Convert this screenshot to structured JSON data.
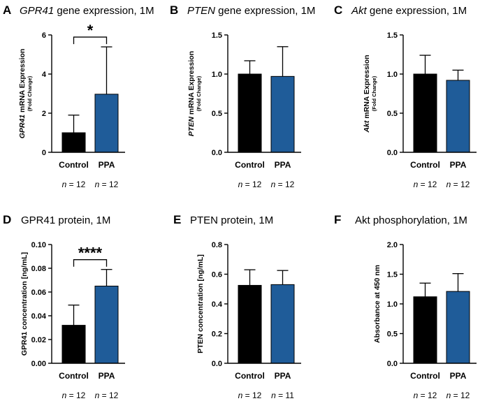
{
  "chart_data": [
    {
      "type": "bar",
      "letter": "A",
      "title_italic": "GPR41",
      "title_rest": " gene expression, 1M",
      "ylabel_italic": "GPR41",
      "ylabel_rest": " mRNA Expression",
      "ylabel_sub": "(Fold Change)",
      "categories": [
        "Control",
        "PPA"
      ],
      "values": [
        1.0,
        2.97
      ],
      "errors": [
        0.9,
        2.42
      ],
      "colors": [
        "#000000",
        "#1f5c99"
      ],
      "ylim": [
        0,
        6
      ],
      "yticks": [
        "0",
        "2",
        "4",
        "6"
      ],
      "n_labels": [
        "= 12",
        "= 12"
      ],
      "n_symbol": "n",
      "significance": "*"
    },
    {
      "type": "bar",
      "letter": "B",
      "title_italic": "PTEN",
      "title_rest": " gene expression, 1M",
      "ylabel_italic": "PTEN",
      "ylabel_rest": " mRNA Expression",
      "ylabel_sub": "(Fold Change)",
      "categories": [
        "Control",
        "PPA"
      ],
      "values": [
        1.0,
        0.97
      ],
      "errors": [
        0.17,
        0.38
      ],
      "colors": [
        "#000000",
        "#1f5c99"
      ],
      "ylim": [
        0,
        1.5
      ],
      "yticks": [
        "0.0",
        "0.5",
        "1.0",
        "1.5"
      ],
      "n_labels": [
        "= 12",
        "= 12"
      ],
      "n_symbol": "n",
      "significance": ""
    },
    {
      "type": "bar",
      "letter": "C",
      "title_italic": "Akt",
      "title_rest": " gene expression, 1M",
      "ylabel_italic": "Akt",
      "ylabel_rest": " mRNA Expression",
      "ylabel_sub": "(Fold Change)",
      "categories": [
        "Control",
        "PPA"
      ],
      "values": [
        1.0,
        0.92
      ],
      "errors": [
        0.24,
        0.13
      ],
      "colors": [
        "#000000",
        "#1f5c99"
      ],
      "ylim": [
        0,
        1.5
      ],
      "yticks": [
        "0.0",
        "0.5",
        "1.0",
        "1.5"
      ],
      "n_labels": [
        "= 12",
        "= 12"
      ],
      "n_symbol": "n",
      "significance": ""
    },
    {
      "type": "bar",
      "letter": "D",
      "title_italic": "",
      "title_rest": "GPR41 protein, 1M",
      "ylabel_italic": "",
      "ylabel_rest": "GPR41 concentration [ng/mL]",
      "ylabel_sub": "",
      "categories": [
        "Control",
        "PPA"
      ],
      "values": [
        0.032,
        0.065
      ],
      "errors": [
        0.017,
        0.014
      ],
      "colors": [
        "#000000",
        "#1f5c99"
      ],
      "ylim": [
        0,
        0.1
      ],
      "yticks": [
        "0.00",
        "0.02",
        "0.04",
        "0.06",
        "0.08",
        "0.10"
      ],
      "n_labels": [
        "= 12",
        "= 12"
      ],
      "n_symbol": "n",
      "significance": "****"
    },
    {
      "type": "bar",
      "letter": "E",
      "title_italic": "",
      "title_rest": "PTEN protein, 1M",
      "ylabel_italic": "",
      "ylabel_rest": "PTEN concentration [ng/mL]",
      "ylabel_sub": "",
      "categories": [
        "Control",
        "PPA"
      ],
      "values": [
        0.525,
        0.53
      ],
      "errors": [
        0.105,
        0.095
      ],
      "colors": [
        "#000000",
        "#1f5c99"
      ],
      "ylim": [
        0,
        0.8
      ],
      "yticks": [
        "0.0",
        "0.2",
        "0.4",
        "0.6",
        "0.8"
      ],
      "n_labels": [
        "= 12",
        "= 11"
      ],
      "n_symbol": "n",
      "significance": ""
    },
    {
      "type": "bar",
      "letter": "F",
      "title_italic": "",
      "title_rest": "Akt phosphorylation, 1M",
      "ylabel_italic": "",
      "ylabel_rest": "Absorbance at 450 nm",
      "ylabel_sub": "",
      "categories": [
        "Control",
        "PPA"
      ],
      "values": [
        1.12,
        1.21
      ],
      "errors": [
        0.23,
        0.3
      ],
      "colors": [
        "#000000",
        "#1f5c99"
      ],
      "ylim": [
        0,
        2.0
      ],
      "yticks": [
        "0.0",
        "0.5",
        "1.0",
        "1.5",
        "2.0"
      ],
      "n_labels": [
        "= 12",
        "= 12"
      ],
      "n_symbol": "n",
      "significance": ""
    }
  ]
}
